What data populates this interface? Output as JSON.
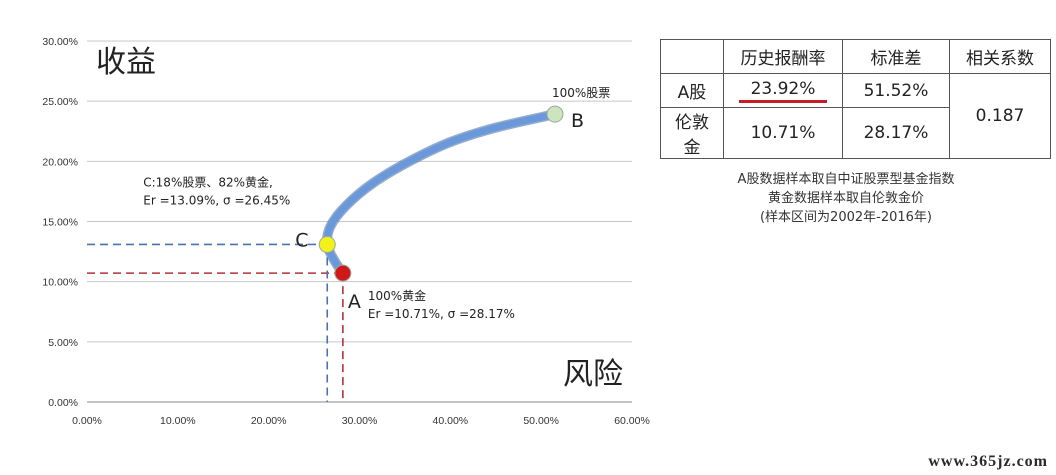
{
  "chart_data": {
    "type": "line",
    "xlim": [
      0,
      60
    ],
    "ylim": [
      0,
      30
    ],
    "x_ticks": [
      "0.00%",
      "10.00%",
      "20.00%",
      "30.00%",
      "40.00%",
      "50.00%",
      "60.00%"
    ],
    "y_ticks": [
      "0.00%",
      "5.00%",
      "10.00%",
      "15.00%",
      "20.00%",
      "25.00%",
      "30.00%"
    ],
    "ylabel": "收益",
    "xlabel": "风险",
    "grid": true,
    "series": [
      {
        "x": [
          28.17,
          27.2,
          26.45,
          26.8,
          28.5,
          31.5,
          35.5,
          40.0,
          45.0,
          51.52
        ],
        "y": [
          10.71,
          11.8,
          13.09,
          14.6,
          16.3,
          18.2,
          20.0,
          21.6,
          22.8,
          23.92
        ],
        "color": "#6a98d8"
      }
    ],
    "points": [
      {
        "label": "A",
        "x": 28.17,
        "y": 10.71,
        "color": "#d01818",
        "annotation": [
          "100%黄金",
          "Er =10.71%, σ =28.17%"
        ]
      },
      {
        "label": "B",
        "x": 51.52,
        "y": 23.92,
        "color": "#cde5bf",
        "annotation": [
          "100%股票"
        ]
      },
      {
        "label": "C",
        "x": 26.45,
        "y": 13.09,
        "color": "#f2f21a",
        "annotation": [
          "C:18%股票、82%黄金,",
          "Er =13.09%, σ =26.45%"
        ]
      }
    ],
    "guide_lines": [
      {
        "point": "A",
        "color": "#b0333a"
      },
      {
        "point": "C",
        "color": "#4b72b0"
      }
    ]
  },
  "table": {
    "headers": [
      "",
      "历史报酬率",
      "标准差",
      "相关系数"
    ],
    "rows": [
      [
        "A股",
        "23.92%",
        "51.52%"
      ],
      [
        "伦敦金",
        "10.71%",
        "28.17%"
      ]
    ],
    "correlation": "0.187"
  },
  "notes": [
    "A股数据样本取自中证股票型基金指数",
    "黄金数据样本取自伦敦金价",
    "(样本区间为2002年-2016年)"
  ],
  "watermark": "www.365jz.com",
  "colors": {
    "highlight_underline": "#c81d25",
    "grid": "#c8c8c8"
  }
}
